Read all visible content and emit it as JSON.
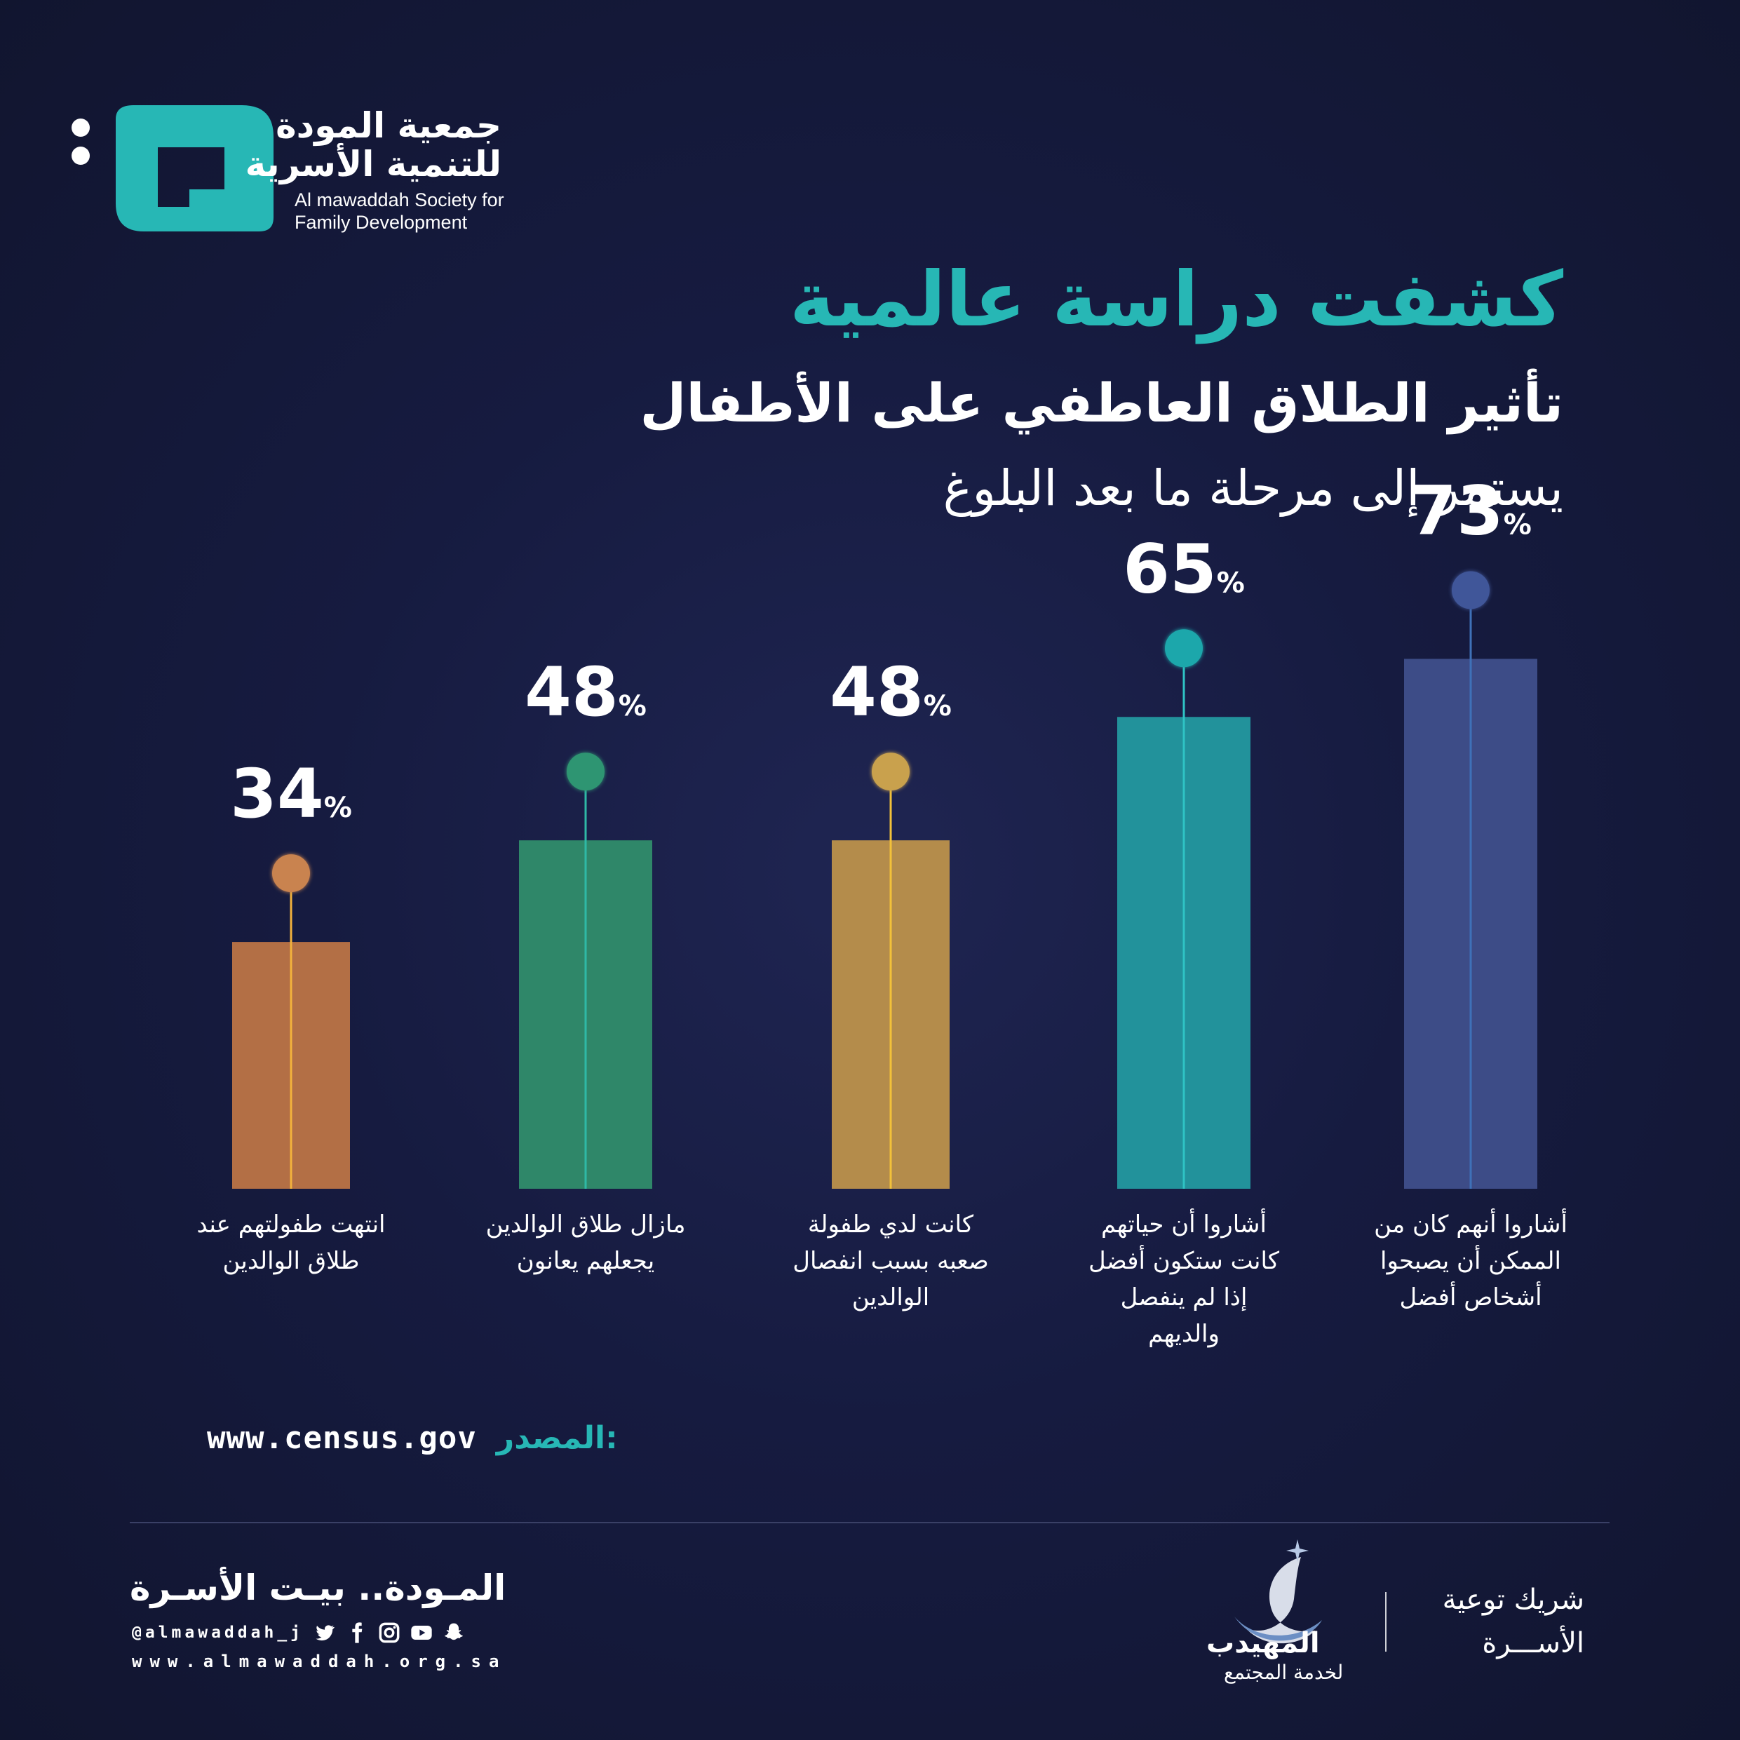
{
  "logo": {
    "name_ar_line1": "جمعية المودة",
    "name_ar_line2": "للتنمية الأسرية",
    "name_en_line1": "Al mawaddah Society for",
    "name_en_line2": "Family Development"
  },
  "headings": {
    "title": "كشفت دراسة عالمية",
    "subtitle": "تأثير الطلاق العاطفي على الأطفال",
    "subtitle2": "يستمر إلى مرحلة ما بعد البلوغ"
  },
  "chart_data": {
    "type": "bar",
    "unit": "%",
    "categories": [
      "انتهت طفولتهم عند\nطلاق الوالدين",
      "مازال طلاق الوالدين\nيجعلهم يعانون",
      "كانت لدي طفولة\nصعبه بسبب انفصال\nالوالدين",
      "أشاروا أن حياتهم\nكانت ستكون أفضل\nإذا لم ينفصل\nوالديهم",
      "أشاروا أنهم كان من\nالممكن أن يصبحوا\nأشخاص أفضل"
    ],
    "values": [
      34,
      48,
      48,
      65,
      73
    ],
    "colors": [
      "#b36f45",
      "#2f8769",
      "#b48c4b",
      "#22929b",
      "#3d4c87"
    ],
    "marker_colors": [
      "#c9834f",
      "#2f9572",
      "#c9a14e",
      "#1fa7ab",
      "#3f5699"
    ],
    "line_colors": [
      "#f2b23c",
      "#2fb9a6",
      "#f2c13a",
      "#2fc3c4",
      "#3f71b8"
    ]
  },
  "source": {
    "label": "المصدر:",
    "url": "www.census.gov"
  },
  "footer": {
    "slogan": "المـودة.. بيـت الأسـرة",
    "handle": "@almawaddah_j",
    "website": "www.almawaddah.org.sa",
    "social_icons": [
      "twitter-icon",
      "facebook-icon",
      "instagram-icon",
      "youtube-icon",
      "snapchat-icon"
    ],
    "partner_name": "المهيدب",
    "partner_sub": "لخدمة المجتمع",
    "partner_tag_line1": "شريك توعية",
    "partner_tag_line2": "الأســـرة"
  }
}
